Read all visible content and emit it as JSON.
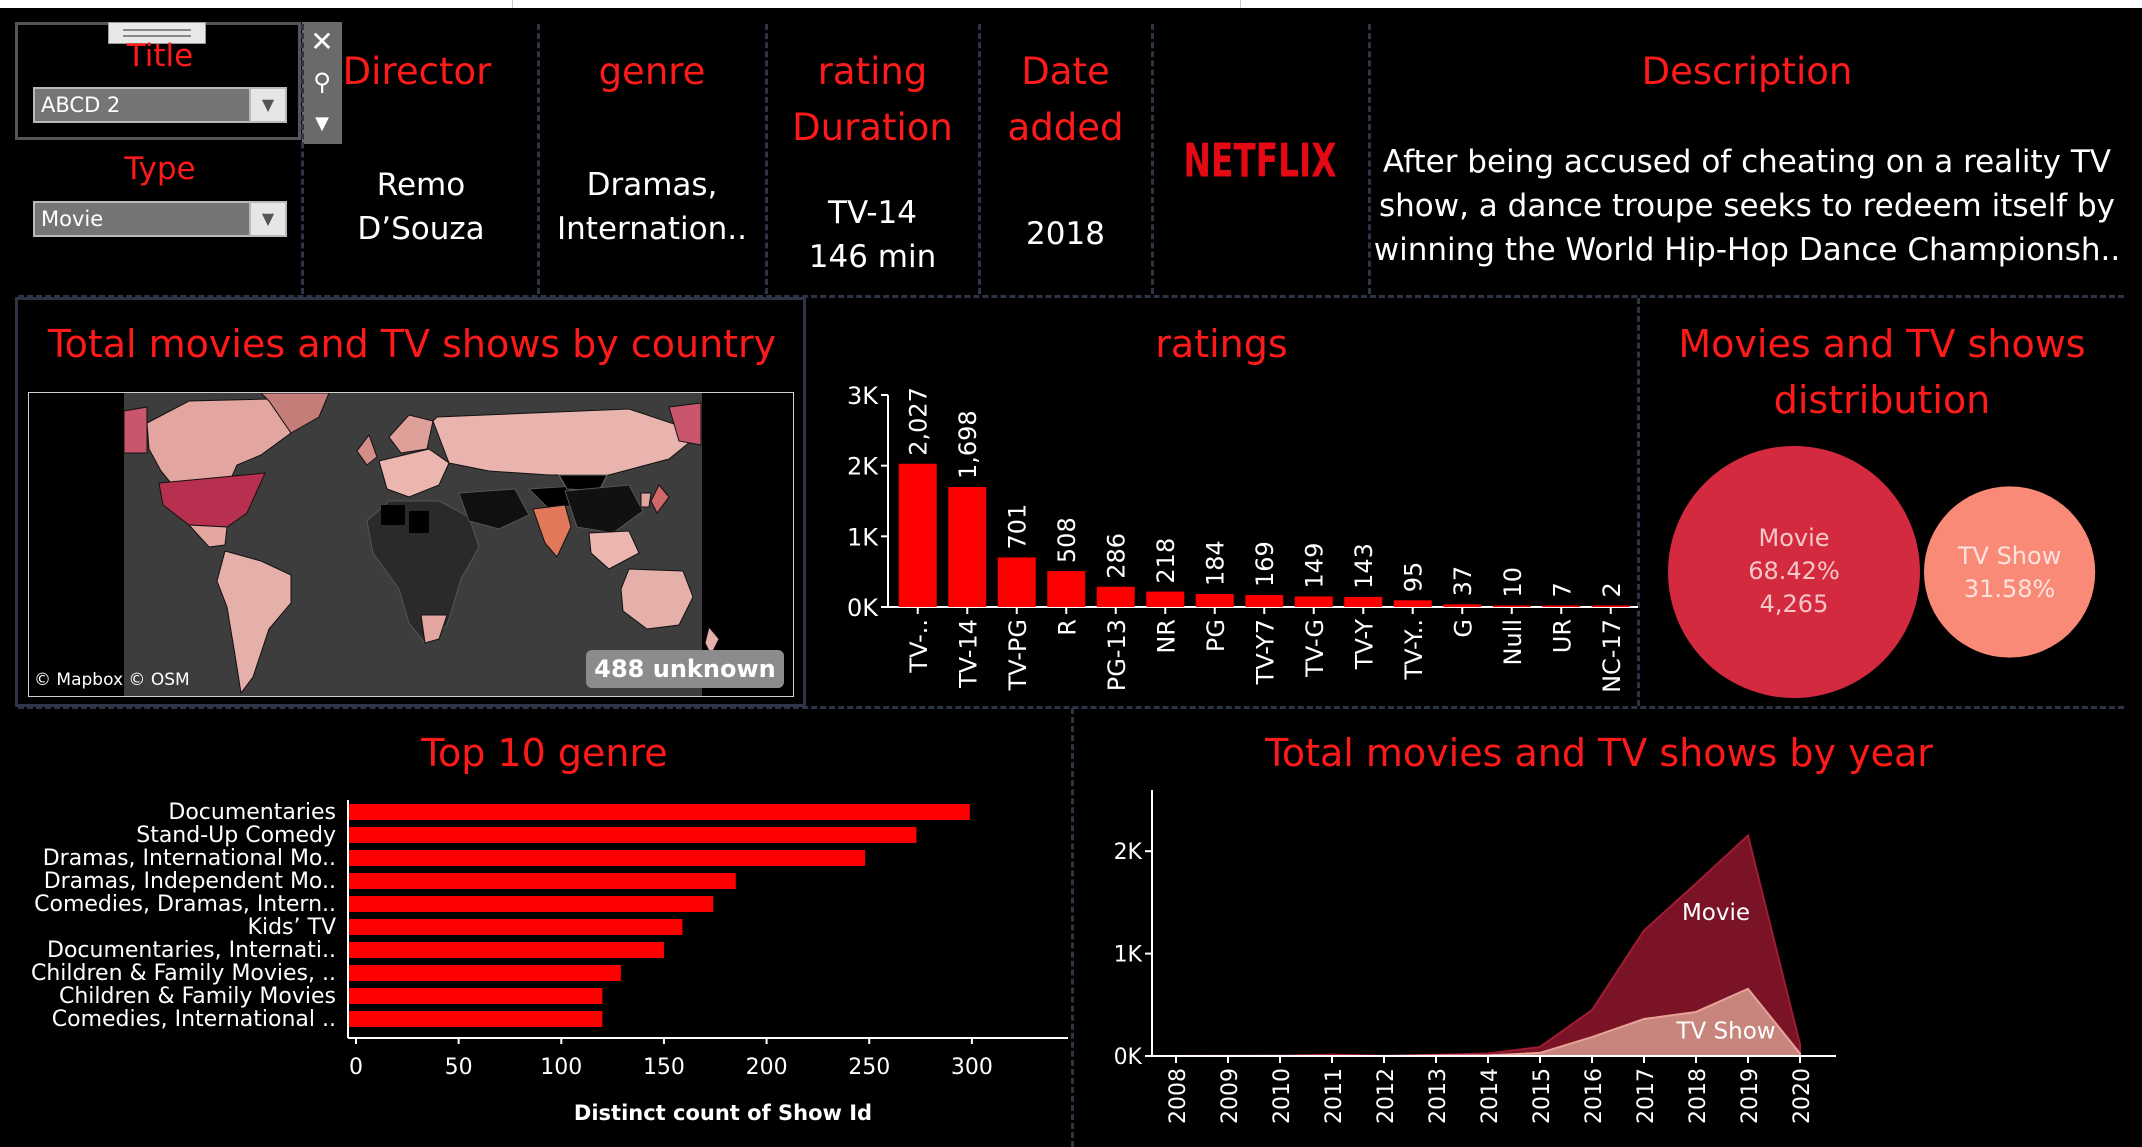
{
  "filters": {
    "title_label": "Title",
    "title_value": "ABCD 2",
    "type_label": "Type",
    "type_value": "Movie"
  },
  "header": {
    "director_label": "Director",
    "director_value_1": "Remo",
    "director_value_2": "D’Souza",
    "genre_label": "genre",
    "genre_value_1": "Dramas,",
    "genre_value_2": "Internation..",
    "rating_label_1": "rating",
    "rating_label_2": "Duration",
    "rating_value": "TV-14",
    "duration_value": "146 min",
    "date_label_1": "Date",
    "date_label_2": "added",
    "date_value": "2018",
    "logo_text": "NETFLIX",
    "description_label": "Description",
    "description_1": "After being accused of cheating on a reality TV",
    "description_2": "show, a dance troupe seeks to redeem itself by",
    "description_3": "winning the World Hip-Hop Dance Championsh.."
  },
  "map_panel": {
    "title": "Total movies and TV shows by country",
    "attribution": "© Mapbox © OSM",
    "unknown_badge": "488 unknown"
  },
  "colors": {
    "accent": "#ff1a1a",
    "bar": "#ff0000",
    "movie": "#d42a3f",
    "tv_show": "#fa8a78",
    "area_movie": "#7a1325",
    "area_tv": "#c7857e"
  },
  "chart_data": [
    {
      "type": "bar",
      "title": "ratings",
      "categories": [
        "TV-..",
        "TV-14",
        "TV-PG",
        "R",
        "PG-13",
        "NR",
        "PG",
        "TV-Y7",
        "TV-G",
        "TV-Y",
        "TV-Y..",
        "G",
        "Null",
        "UR",
        "NC-17"
      ],
      "values": [
        2027,
        1698,
        701,
        508,
        286,
        218,
        184,
        169,
        149,
        143,
        95,
        37,
        10,
        7,
        2
      ],
      "value_labels": [
        "2,027",
        "1,698",
        "701",
        "508",
        "286",
        "218",
        "184",
        "169",
        "149",
        "143",
        "95",
        "37",
        "10",
        "7",
        "2"
      ],
      "ylim": [
        0,
        3000
      ],
      "yticks": [
        0,
        1000,
        2000,
        3000
      ],
      "ytick_labels": [
        "0K",
        "1K",
        "2K",
        "3K"
      ]
    },
    {
      "type": "pie",
      "title": "Movies and TV shows distribution",
      "title_line1": "Movies and TV shows",
      "title_line2": "distribution",
      "labels": [
        "Movie",
        "TV Show"
      ],
      "percents": [
        "68.42%",
        "31.58%"
      ],
      "values": [
        68.42,
        31.58
      ],
      "movie_count": "4,265"
    },
    {
      "type": "bar",
      "orientation": "horizontal",
      "title": "Top 10 genre",
      "categories": [
        "Documentaries",
        "Stand-Up Comedy",
        "Dramas, International Mo..",
        "Dramas, Independent Mo..",
        "Comedies, Dramas, Intern..",
        "Kids’ TV",
        "Documentaries, Internati..",
        "Children & Family Movies, ..",
        "Children & Family Movies",
        "Comedies, International .."
      ],
      "values": [
        299,
        273,
        248,
        185,
        174,
        159,
        150,
        129,
        120,
        120
      ],
      "xlabel": "Distinct count of Show Id",
      "xlim": [
        0,
        340
      ],
      "xticks": [
        0,
        50,
        100,
        150,
        200,
        250,
        300
      ],
      "xtick_labels": [
        "0",
        "50",
        "100",
        "150",
        "200",
        "250",
        "300"
      ]
    },
    {
      "type": "area",
      "title": "Total movies and TV shows by year",
      "x": [
        "2008",
        "2009",
        "2010",
        "2011",
        "2012",
        "2013",
        "2014",
        "2015",
        "2016",
        "2017",
        "2018",
        "2019",
        "2020"
      ],
      "series": [
        {
          "name": "Movie",
          "values": [
            1,
            2,
            1,
            13,
            3,
            6,
            19,
            58,
            264,
            864,
            1255,
            1497,
            88
          ]
        },
        {
          "name": "TV Show",
          "values": [
            0,
            0,
            1,
            0,
            0,
            5,
            6,
            30,
            185,
            361,
            430,
            656,
            25
          ]
        }
      ],
      "ylim": [
        0,
        2500
      ],
      "yticks": [
        0,
        1000,
        2000
      ],
      "ytick_labels": [
        "0K",
        "1K",
        "2K"
      ]
    }
  ]
}
